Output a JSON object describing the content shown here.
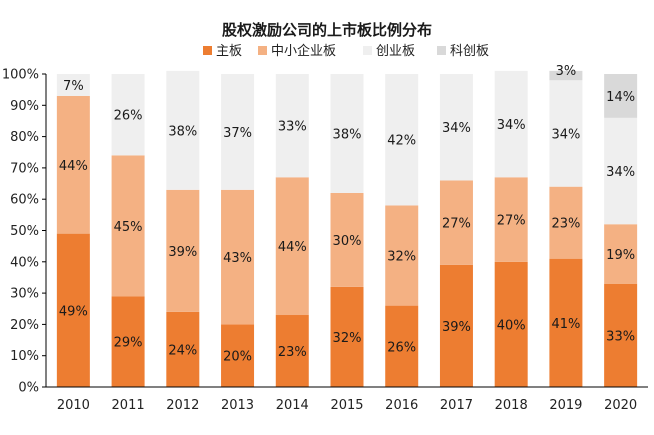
{
  "chart_data": {
    "type": "bar",
    "stacked": true,
    "title": "股权激励公司的上市板比例分布",
    "categories": [
      "2010",
      "2011",
      "2012",
      "2013",
      "2014",
      "2015",
      "2016",
      "2017",
      "2018",
      "2019",
      "2020"
    ],
    "series": [
      {
        "name": "主板",
        "color": "#ED7D31",
        "values": [
          49,
          29,
          24,
          20,
          23,
          32,
          26,
          39,
          40,
          41,
          33
        ],
        "labels": [
          "49%",
          "29%",
          "24%",
          "20%",
          "23%",
          "32%",
          "26%",
          "39%",
          "40%",
          "41%",
          "33%"
        ]
      },
      {
        "name": "中小企业板",
        "color": "#F4B183",
        "values": [
          44,
          45,
          39,
          43,
          44,
          30,
          32,
          27,
          27,
          23,
          19
        ],
        "labels": [
          "44%",
          "45%",
          "39%",
          "43%",
          "44%",
          "30%",
          "32%",
          "27%",
          "27%",
          "23%",
          "19%"
        ]
      },
      {
        "name": "创业板",
        "color": "#EFEFEF",
        "values": [
          7,
          26,
          38,
          37,
          33,
          38,
          42,
          34,
          34,
          34,
          34
        ],
        "labels": [
          "7%",
          "26%",
          "38%",
          "37%",
          "33%",
          "38%",
          "42%",
          "34%",
          "34%",
          "34%",
          "34%"
        ]
      },
      {
        "name": "科创板",
        "color": "#D9D9D9",
        "values": [
          0,
          0,
          0,
          0,
          0,
          0,
          0,
          0,
          0,
          3,
          14
        ],
        "labels": [
          "",
          "",
          "",
          "",
          "",
          "",
          "",
          "",
          "",
          "3%",
          "14%"
        ]
      }
    ],
    "ylim": [
      0,
      100
    ],
    "yticks": [
      "0%",
      "10%",
      "20%",
      "30%",
      "40%",
      "50%",
      "60%",
      "70%",
      "80%",
      "90%",
      "100%"
    ],
    "legend_position": "top",
    "grid": false
  }
}
